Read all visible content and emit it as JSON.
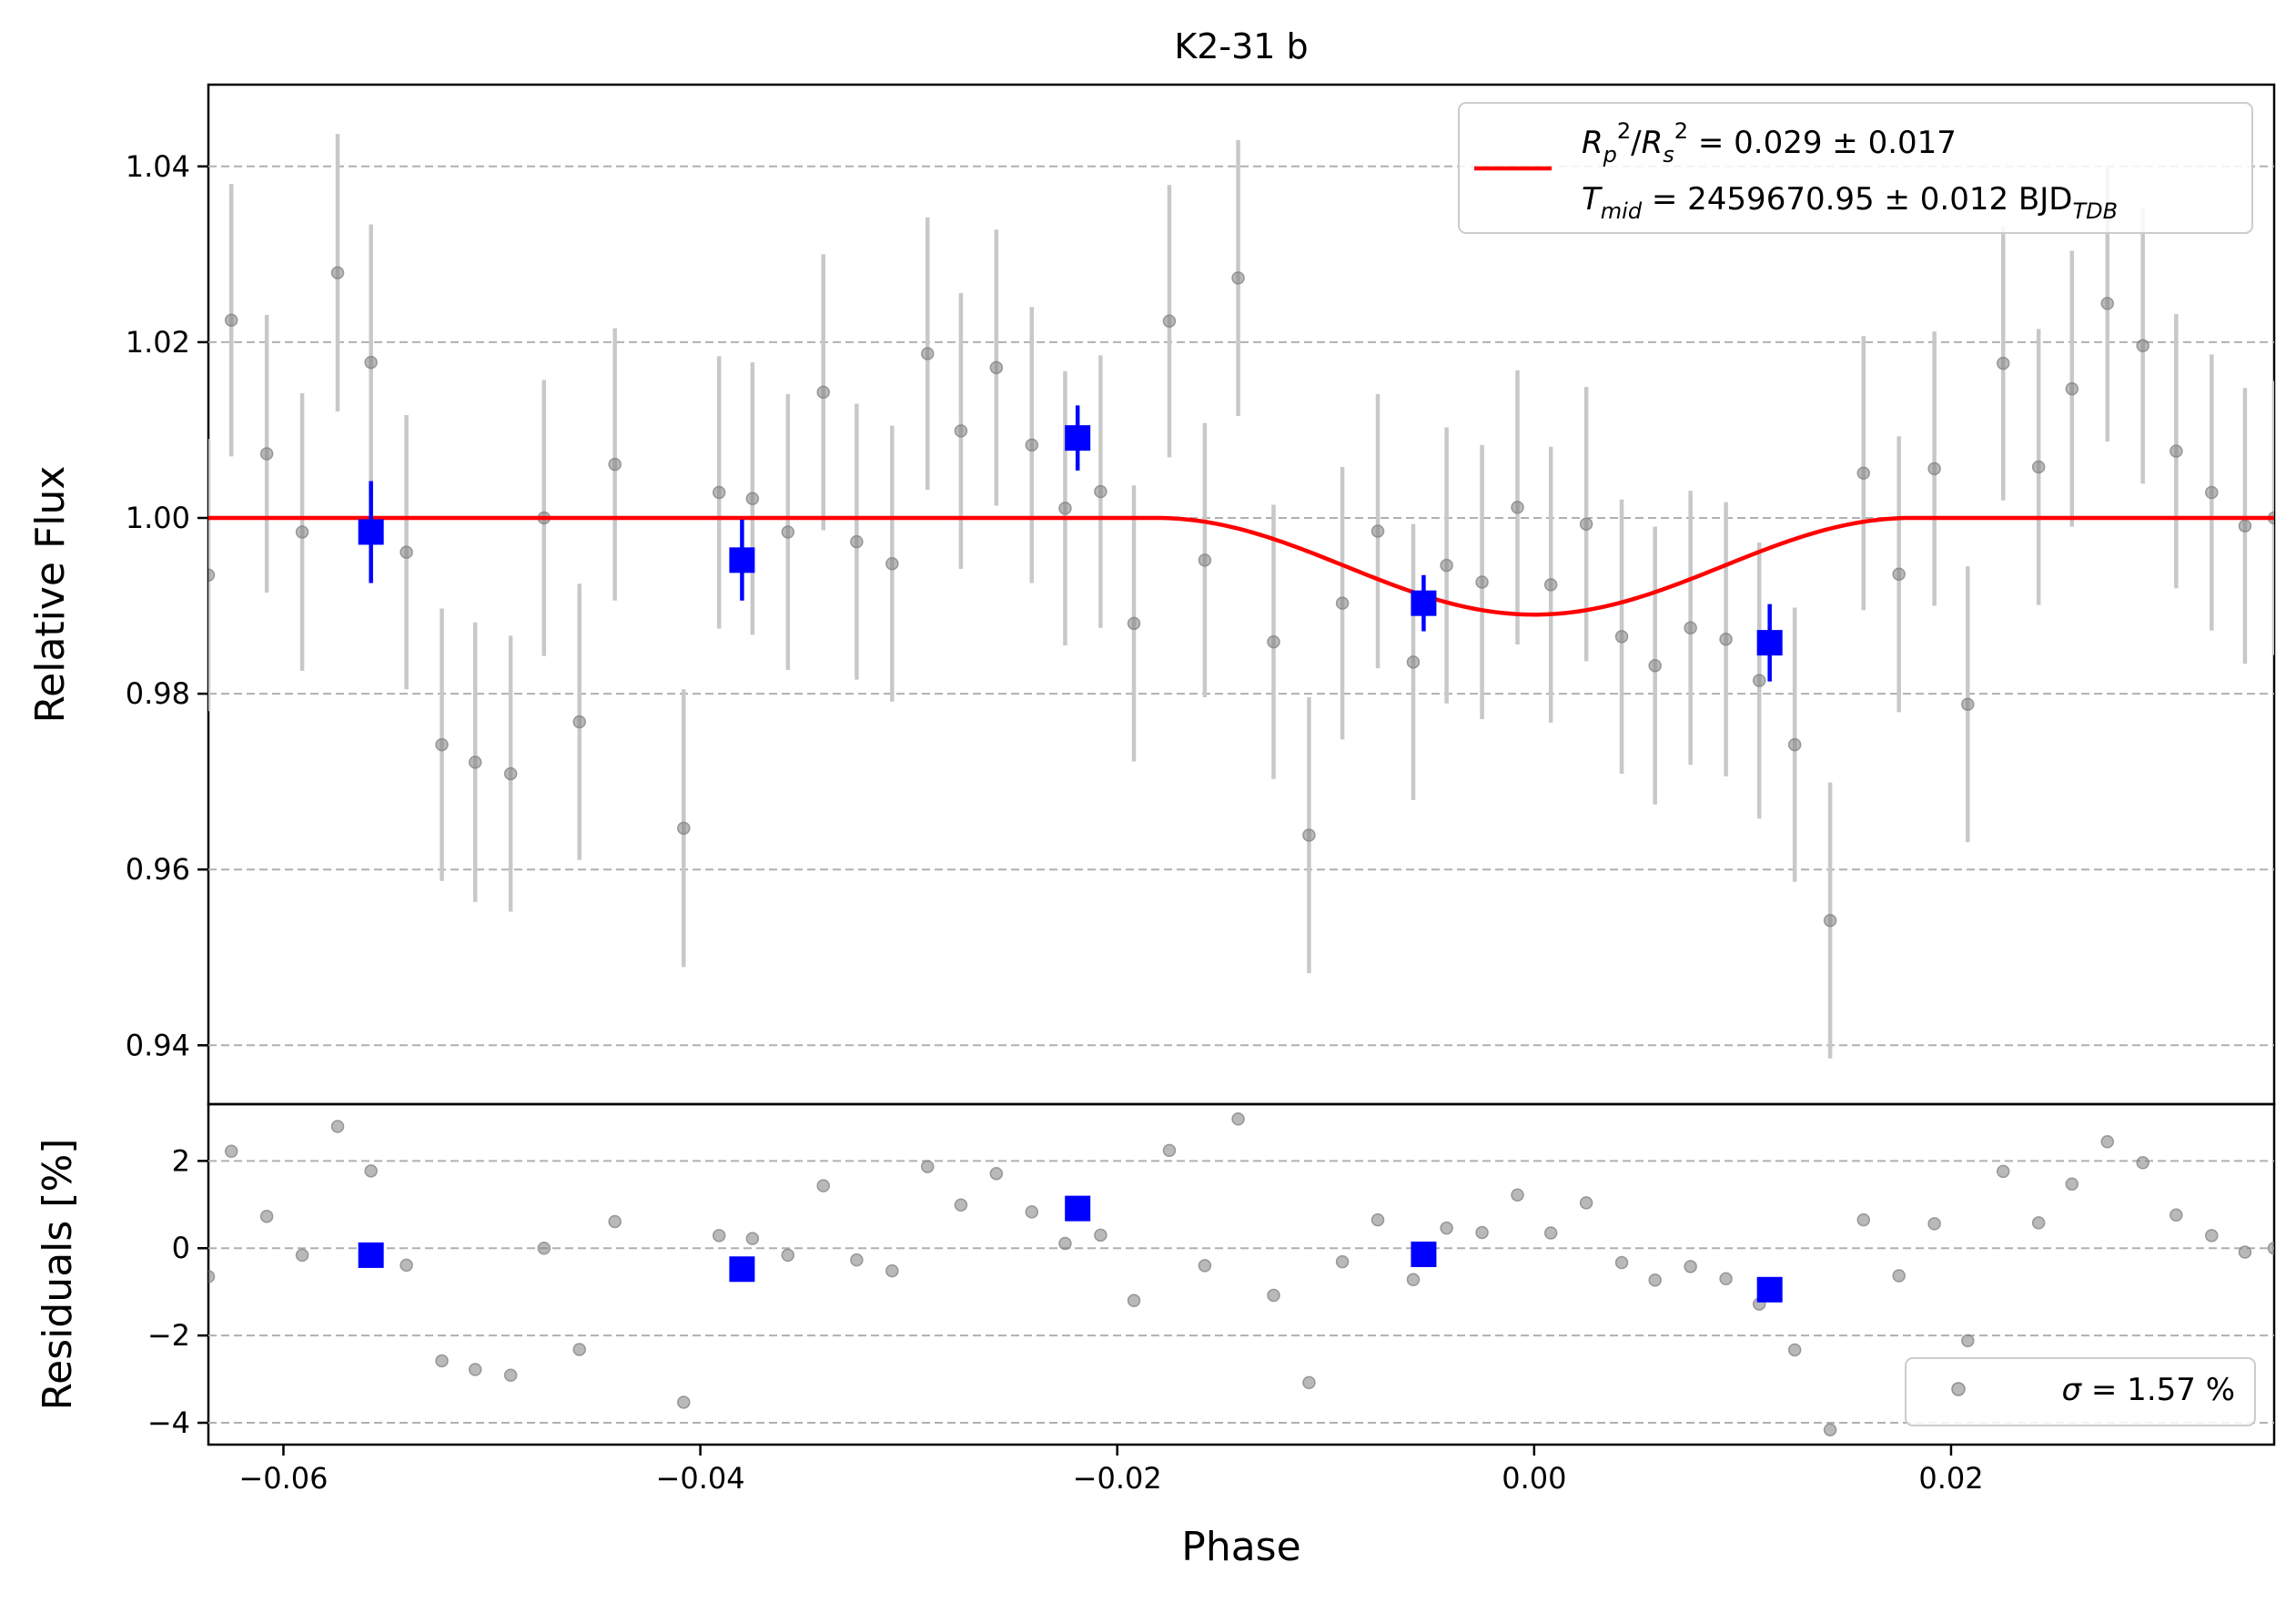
{
  "chart_data": {
    "type": "scatter",
    "title": "K2-31 b",
    "xlabel": "Phase",
    "xlim": [
      -0.0636,
      0.0355
    ],
    "xticks": [
      -0.06,
      -0.04,
      -0.02,
      0.0,
      0.02
    ],
    "xtick_labels": [
      "−0.06",
      "−0.04",
      "−0.02",
      "0.00",
      "0.02"
    ],
    "top_panel": {
      "ylabel": "Relative Flux",
      "ylim": [
        0.9333,
        1.0493
      ],
      "yticks": [
        0.94,
        0.96,
        0.98,
        1.0,
        1.02,
        1.04
      ],
      "ytick_labels": [
        "0.94",
        "0.96",
        "0.98",
        "1.00",
        "1.02",
        "1.04"
      ],
      "grid": "horizontal dashed",
      "data_points": {
        "color": "#808080",
        "x": [
          -0.0636,
          -0.0625,
          -0.0608,
          -0.0591,
          -0.0574,
          -0.0558,
          -0.0541,
          -0.0524,
          -0.0508,
          -0.0491,
          -0.0475,
          -0.0458,
          -0.0441,
          -0.0408,
          -0.0391,
          -0.0375,
          -0.0358,
          -0.0341,
          -0.0325,
          -0.0308,
          -0.0291,
          -0.0275,
          -0.0258,
          -0.0241,
          -0.0225,
          -0.0208,
          -0.0192,
          -0.0175,
          -0.0158,
          -0.0142,
          -0.0125,
          -0.0108,
          -0.0092,
          -0.0075,
          -0.0058,
          -0.0042,
          -0.0025,
          -0.0008,
          0.0008,
          0.0025,
          0.0042,
          0.0058,
          0.0075,
          0.0092,
          0.0108,
          0.0125,
          0.0142,
          0.0158,
          0.0175,
          0.0192,
          0.0208,
          0.0225,
          0.0242,
          0.0258,
          0.0275,
          0.0292,
          0.0308,
          0.0325,
          0.0341,
          0.0355
        ],
        "y": [
          0.9935,
          1.0225,
          1.0073,
          0.9984,
          1.0279,
          1.0177,
          0.9961,
          0.9742,
          0.9722,
          0.9709,
          1.0,
          0.9768,
          1.0061,
          0.9647,
          1.0029,
          1.0022,
          0.9984,
          1.0143,
          0.9973,
          0.9948,
          1.0187,
          1.0099,
          1.0171,
          1.0083,
          1.0011,
          1.003,
          0.988,
          1.0224,
          0.9952,
          1.0273,
          0.9859,
          0.9639,
          0.9903,
          0.9985,
          0.9836,
          0.9946,
          0.9927,
          1.0012,
          0.9924,
          0.9993,
          0.9865,
          0.9832,
          0.9875,
          0.9862,
          0.9815,
          0.9742,
          0.9542,
          1.0051,
          0.9936,
          1.0056,
          0.9788,
          1.0176,
          1.0058,
          1.0147,
          1.0244,
          1.0196,
          1.0076,
          1.0029,
          0.9991,
          1.0
        ],
        "yerr": [
          0.0155,
          0.0155,
          0.0158,
          0.0158,
          0.0158,
          0.0157,
          0.0156,
          0.0155,
          0.0159,
          0.0157,
          0.0157,
          0.0157,
          0.0155,
          0.0158,
          0.0155,
          0.0155,
          0.0157,
          0.0157,
          0.0157,
          0.0157,
          0.0155,
          0.0157,
          0.0157,
          0.0157,
          0.0156,
          0.0155,
          0.0157,
          0.0155,
          0.0156,
          0.0157,
          0.0156,
          0.0157,
          0.0155,
          0.0156,
          0.0157,
          0.0157,
          0.0156,
          0.0156,
          0.0157,
          0.0156,
          0.0156,
          0.0158,
          0.0156,
          0.0156,
          0.0157,
          0.0156,
          0.0157,
          0.0156,
          0.0157,
          0.0156,
          0.0157,
          0.0156,
          0.0157,
          0.0157,
          0.0157,
          0.0157,
          0.0156,
          0.0157,
          0.0157,
          0.0156
        ]
      },
      "binned_points": {
        "color": "#0000ff",
        "x": [
          -0.0558,
          -0.038,
          -0.0219,
          -0.0053,
          0.0113
        ],
        "y": [
          0.9984,
          0.9952,
          1.0091,
          0.9903,
          0.9858
        ],
        "yerr": [
          0.0058,
          0.0046,
          0.0037,
          0.0032,
          0.0044
        ]
      },
      "model": {
        "color": "#ff0000",
        "depth": 0.011,
        "transit_halfwidth": 0.0181,
        "note_visible": false
      },
      "legend": {
        "location": "upper right",
        "line1_html": "<tspan font-style='italic'>R</tspan><tspan font-style='italic' font-size='24' dy='10'>p</tspan><tspan font-size='24' dy='-26'>2</tspan><tspan dy='16'>/</tspan><tspan font-style='italic'>R</tspan><tspan font-style='italic' font-size='24' dy='10'>s</tspan><tspan font-size='24' dy='-26'>2</tspan><tspan dy='16'> = 0.029 ± 0.017</tspan>",
        "line2_html": "<tspan font-style='italic'>T</tspan><tspan font-style='italic' font-size='24' dy='10'>mid</tspan><tspan dy='-10'> = 2459670.95 ± 0.012 BJD</tspan><tspan font-style='italic' font-size='24' dy='10'>TDB</tspan>"
      }
    },
    "bottom_panel": {
      "ylabel": "Residuals [%]",
      "ylim": [
        -4.5,
        3.3
      ],
      "yticks": [
        -4,
        -2,
        0,
        2
      ],
      "ytick_labels": [
        "−4",
        "−2",
        "0",
        "2"
      ],
      "grid": "horizontal dashed",
      "residuals": {
        "color": "#808080",
        "x": [
          -0.0636,
          -0.0625,
          -0.0608,
          -0.0591,
          -0.0574,
          -0.0558,
          -0.0541,
          -0.0524,
          -0.0508,
          -0.0491,
          -0.0475,
          -0.0458,
          -0.0441,
          -0.0408,
          -0.0391,
          -0.0375,
          -0.0358,
          -0.0341,
          -0.0325,
          -0.0308,
          -0.0291,
          -0.0275,
          -0.0258,
          -0.0241,
          -0.0225,
          -0.0208,
          -0.0192,
          -0.0175,
          -0.0158,
          -0.0142,
          -0.0125,
          -0.0108,
          -0.0092,
          -0.0075,
          -0.0058,
          -0.0042,
          -0.0025,
          -0.0008,
          0.0008,
          0.0025,
          0.0042,
          0.0058,
          0.0075,
          0.0092,
          0.0108,
          0.0125,
          0.0142,
          0.0158,
          0.0175,
          0.0192,
          0.0208,
          0.0225,
          0.0242,
          0.0258,
          0.0275,
          0.0292,
          0.0308,
          0.0325,
          0.0341,
          0.0355
        ],
        "y": [
          -0.65,
          2.22,
          0.73,
          -0.16,
          2.79,
          1.77,
          -0.39,
          -2.58,
          -2.78,
          -2.91,
          0.0,
          -2.32,
          0.61,
          -3.53,
          0.29,
          0.22,
          -0.16,
          1.43,
          -0.27,
          -0.52,
          1.87,
          0.99,
          1.71,
          0.83,
          0.11,
          0.3,
          -1.2,
          2.24,
          -0.4,
          2.96,
          -1.08,
          -3.08,
          -0.31,
          0.65,
          -0.72,
          0.46,
          0.36,
          1.22,
          0.35,
          1.04,
          -0.33,
          -0.73,
          -0.42,
          -0.7,
          -1.28,
          -2.33,
          -4.16,
          0.65,
          -0.63,
          0.56,
          -2.12,
          1.76,
          0.58,
          1.47,
          2.44,
          1.96,
          0.76,
          0.29,
          -0.09,
          0.0
        ]
      },
      "binned_residuals": {
        "color": "#0000ff",
        "x": [
          -0.0558,
          -0.038,
          -0.0219,
          -0.0053,
          0.0113
        ],
        "y": [
          -0.16,
          -0.48,
          0.91,
          -0.14,
          -0.95
        ]
      },
      "legend": {
        "location": "lower right",
        "label_html": "<tspan font-style='italic'>σ</tspan><tspan> = 1.57 %</tspan>"
      }
    }
  }
}
